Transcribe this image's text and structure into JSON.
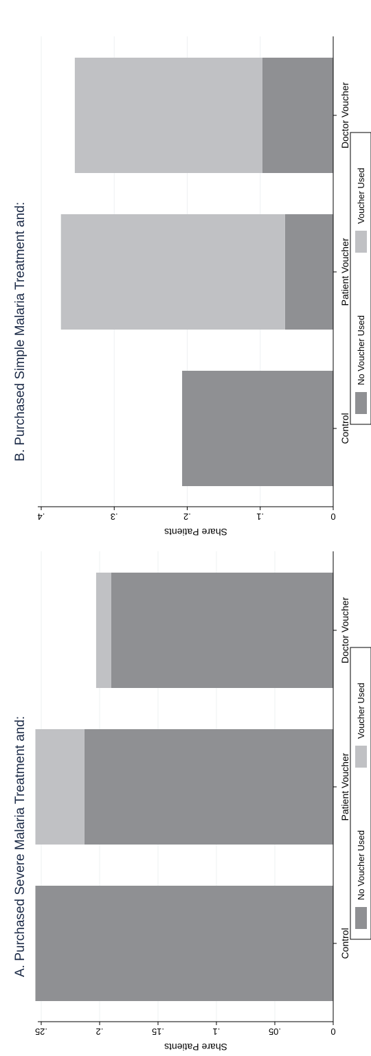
{
  "colors": {
    "no_voucher": "#8f9093",
    "voucher": "#c0c1c4",
    "grid": "#eef0f2",
    "axis": "#000000",
    "title": "#1b2a46"
  },
  "chart_data": [
    {
      "type": "bar",
      "stacked": true,
      "title": "A. Purchased Severe Malaria Treatment and:",
      "xlabel": "",
      "ylabel": "Share Patients",
      "categories": [
        "Control",
        "Patient Voucher",
        "Doctor Voucher"
      ],
      "series": [
        {
          "name": "No Voucher Used",
          "values": [
            0.255,
            0.213,
            0.19
          ]
        },
        {
          "name": "Voucher Used",
          "values": [
            0.0,
            0.042,
            0.013
          ]
        }
      ],
      "ylim": [
        0,
        0.25
      ],
      "yticks": [
        0,
        0.05,
        0.1,
        0.15,
        0.2,
        0.25
      ],
      "ytick_labels": [
        "0",
        ".05",
        ".1",
        ".15",
        ".2",
        ".25"
      ],
      "grid": true,
      "legend": "bottom"
    },
    {
      "type": "bar",
      "stacked": true,
      "title": "B. Purchased Simple Malaria Treatment and:",
      "xlabel": "",
      "ylabel": "Share Patients",
      "categories": [
        "Control",
        "Patient Voucher",
        "Doctor Voucher"
      ],
      "series": [
        {
          "name": "No Voucher Used",
          "values": [
            0.207,
            0.066,
            0.097
          ]
        },
        {
          "name": "Voucher Used",
          "values": [
            0.0,
            0.307,
            0.257
          ]
        }
      ],
      "ylim": [
        0,
        0.4
      ],
      "yticks": [
        0,
        0.1,
        0.2,
        0.3,
        0.4
      ],
      "ytick_labels": [
        "0",
        ".1",
        ".2",
        ".3",
        ".4"
      ],
      "grid": true,
      "legend": "bottom"
    }
  ]
}
